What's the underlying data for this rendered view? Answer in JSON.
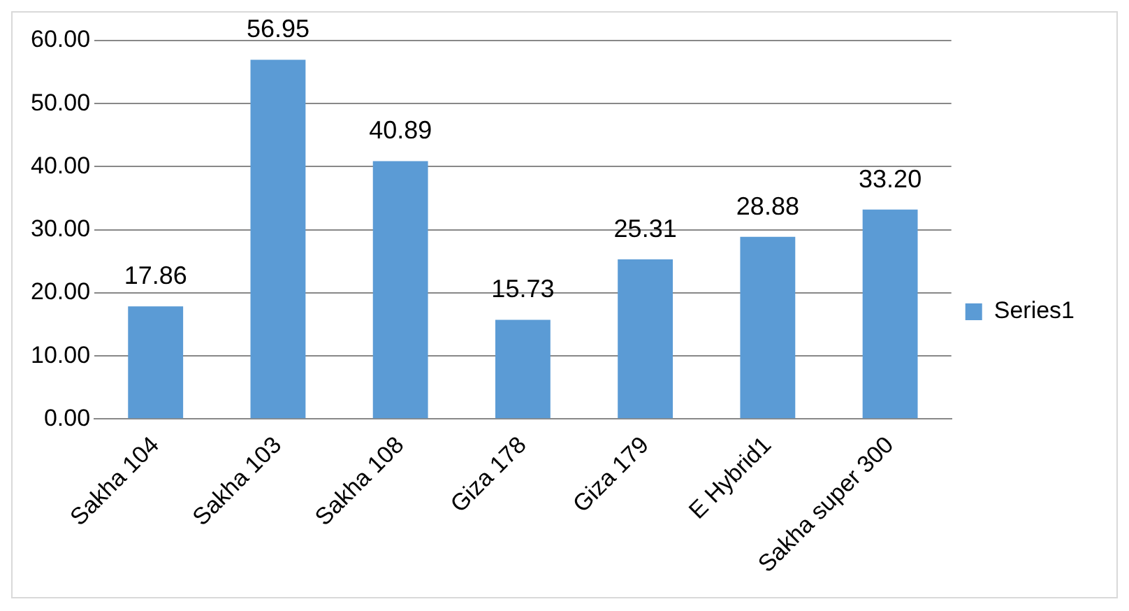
{
  "chart_data": {
    "type": "bar",
    "categories": [
      "Sakha 104",
      "Sakha 103",
      "Sakha 108",
      "Giza 178",
      "Giza 179",
      "E Hybrid1",
      "Sakha super 300"
    ],
    "series": [
      {
        "name": "Series1",
        "color": "#5b9bd5",
        "values": [
          17.86,
          56.95,
          40.89,
          15.73,
          25.31,
          28.88,
          33.2
        ],
        "value_labels": [
          "17.86",
          "56.95",
          "40.89",
          "15.73",
          "25.31",
          "28.88",
          "33.20"
        ]
      }
    ],
    "ylim": [
      0,
      60
    ],
    "yticks": [
      {
        "value": 0,
        "label": "0.00"
      },
      {
        "value": 10,
        "label": "10.00"
      },
      {
        "value": 20,
        "label": "20.00"
      },
      {
        "value": 30,
        "label": "30.00"
      },
      {
        "value": 40,
        "label": "40.00"
      },
      {
        "value": 50,
        "label": "50.00"
      },
      {
        "value": 60,
        "label": "60.00"
      }
    ],
    "grid": "y",
    "legend": "right"
  }
}
